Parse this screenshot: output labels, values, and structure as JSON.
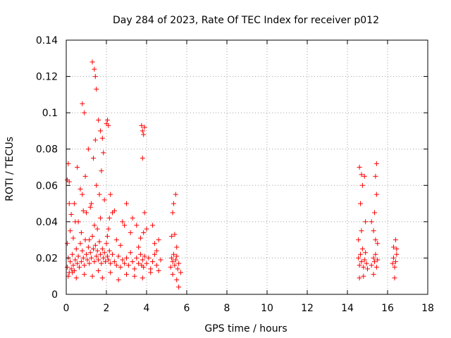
{
  "chart_data": {
    "type": "scatter",
    "title": "Day 284 of 2023, Rate Of TEC Index for receiver p012",
    "xlabel": "GPS time / hours",
    "ylabel": "ROTI / TECUs",
    "xlim": [
      0,
      18
    ],
    "ylim": [
      0,
      0.14
    ],
    "xticks": [
      0,
      2,
      4,
      6,
      8,
      10,
      12,
      14,
      16,
      18
    ],
    "yticks": [
      0,
      0.02,
      0.04,
      0.06,
      0.08,
      0.1,
      0.12,
      0.14
    ],
    "grid": true,
    "marker": "+",
    "color": "#ff0000",
    "series": [
      {
        "name": "ROTI",
        "x": [
          0.05,
          0.1,
          0.15,
          0.2,
          0.25,
          0.3,
          0.35,
          0.4,
          0.45,
          0.5,
          0.55,
          0.6,
          0.65,
          0.7,
          0.75,
          0.8,
          0.85,
          0.9,
          0.95,
          1.0,
          1.05,
          1.1,
          1.15,
          1.2,
          1.25,
          1.3,
          1.35,
          1.4,
          1.45,
          1.5,
          1.55,
          1.6,
          1.65,
          1.7,
          1.75,
          1.8,
          1.85,
          1.9,
          1.95,
          2.0,
          2.05,
          2.1,
          2.15,
          2.2,
          2.3,
          2.4,
          2.5,
          2.6,
          2.7,
          2.8,
          2.9,
          3.0,
          3.1,
          3.2,
          3.3,
          3.4,
          3.5,
          3.6,
          3.7,
          3.75,
          3.8,
          3.85,
          3.9,
          4.0,
          4.1,
          4.2,
          4.3,
          4.4,
          4.5,
          4.6,
          4.7,
          5.2,
          5.25,
          5.3,
          5.35,
          5.4,
          5.45,
          5.5,
          5.55,
          5.6,
          5.7,
          14.55,
          14.6,
          14.65,
          14.7,
          14.75,
          14.8,
          14.85,
          14.9,
          14.95,
          15.0,
          15.2,
          15.3,
          15.35,
          15.4,
          15.45,
          15.5,
          16.25,
          16.3,
          16.35,
          16.4,
          16.45,
          0.1,
          0.3,
          0.5,
          0.9,
          1.3,
          1.6,
          1.8,
          2.2,
          2.6,
          3.0,
          3.4,
          3.8,
          4.2,
          5.3,
          5.5,
          14.6,
          14.8,
          15.3,
          16.35,
          0.2,
          0.6,
          1.0,
          1.4,
          1.7,
          2.1,
          2.5,
          3.2,
          3.7,
          4.4,
          5.4,
          14.7,
          15.4,
          16.3,
          0.4,
          0.8,
          1.2,
          1.5,
          1.9,
          2.3,
          2.8,
          3.5,
          4.0,
          4.6,
          5.3,
          14.65,
          15.2,
          16.4,
          0.15,
          0.55,
          0.95,
          1.35,
          1.75,
          2.2,
          3.0,
          3.9,
          5.45,
          14.75,
          15.45,
          0.25,
          0.7,
          1.1,
          1.45,
          1.85,
          2.4,
          3.3,
          4.3,
          5.35,
          14.85,
          15.35,
          0.05,
          0.35,
          0.75,
          1.15,
          1.55,
          2.05,
          2.7,
          3.6,
          4.5,
          5.5,
          14.55,
          15.5,
          16.45,
          0.45,
          0.85,
          1.25,
          1.65,
          2.15,
          2.9,
          3.85,
          5.25,
          14.9,
          15.3,
          1.3,
          1.4,
          1.45,
          1.5,
          0.8,
          0.9,
          1.6,
          1.7,
          1.8,
          2.0,
          2.05,
          2.1,
          3.75,
          3.8,
          3.85,
          3.9,
          0.05,
          0.1,
          0.15,
          14.6,
          14.7,
          15.4,
          15.45,
          3.8,
          5.6
        ],
        "y": [
          0.015,
          0.02,
          0.012,
          0.018,
          0.014,
          0.022,
          0.016,
          0.013,
          0.019,
          0.025,
          0.017,
          0.021,
          0.015,
          0.028,
          0.018,
          0.024,
          0.02,
          0.016,
          0.03,
          0.022,
          0.019,
          0.026,
          0.017,
          0.023,
          0.02,
          0.032,
          0.025,
          0.018,
          0.027,
          0.021,
          0.024,
          0.019,
          0.029,
          0.022,
          0.017,
          0.025,
          0.02,
          0.023,
          0.018,
          0.028,
          0.021,
          0.019,
          0.024,
          0.017,
          0.022,
          0.018,
          0.016,
          0.021,
          0.015,
          0.019,
          0.017,
          0.02,
          0.016,
          0.023,
          0.018,
          0.014,
          0.02,
          0.017,
          0.022,
          0.016,
          0.019,
          0.015,
          0.021,
          0.017,
          0.02,
          0.014,
          0.018,
          0.022,
          0.016,
          0.013,
          0.019,
          0.015,
          0.02,
          0.018,
          0.022,
          0.016,
          0.019,
          0.021,
          0.014,
          0.017,
          0.012,
          0.02,
          0.016,
          0.022,
          0.018,
          0.025,
          0.015,
          0.019,
          0.023,
          0.017,
          0.014,
          0.016,
          0.02,
          0.018,
          0.022,
          0.015,
          0.019,
          0.017,
          0.02,
          0.015,
          0.018,
          0.022,
          0.01,
          0.012,
          0.009,
          0.011,
          0.01,
          0.013,
          0.009,
          0.012,
          0.008,
          0.011,
          0.01,
          0.009,
          0.012,
          0.011,
          0.008,
          0.009,
          0.01,
          0.011,
          0.009,
          0.035,
          0.04,
          0.045,
          0.038,
          0.042,
          0.036,
          0.03,
          0.034,
          0.031,
          0.028,
          0.033,
          0.035,
          0.03,
          0.026,
          0.05,
          0.055,
          0.048,
          0.06,
          0.052,
          0.045,
          0.04,
          0.038,
          0.036,
          0.03,
          0.045,
          0.05,
          0.04,
          0.03,
          0.062,
          0.07,
          0.065,
          0.075,
          0.068,
          0.055,
          0.05,
          0.045,
          0.055,
          0.06,
          0.055,
          0.044,
          0.058,
          0.08,
          0.085,
          0.078,
          0.046,
          0.042,
          0.038,
          0.05,
          0.065,
          0.045,
          0.028,
          0.031,
          0.034,
          0.03,
          0.036,
          0.032,
          0.027,
          0.026,
          0.024,
          0.026,
          0.03,
          0.028,
          0.025,
          0.04,
          0.046,
          0.05,
          0.055,
          0.042,
          0.038,
          0.034,
          0.032,
          0.04,
          0.035,
          0.128,
          0.124,
          0.12,
          0.113,
          0.105,
          0.1,
          0.096,
          0.09,
          0.086,
          0.094,
          0.096,
          0.093,
          0.093,
          0.09,
          0.088,
          0.092,
          0.063,
          0.072,
          0.05,
          0.07,
          0.066,
          0.065,
          0.072,
          0.075,
          0.004
        ]
      }
    ]
  }
}
